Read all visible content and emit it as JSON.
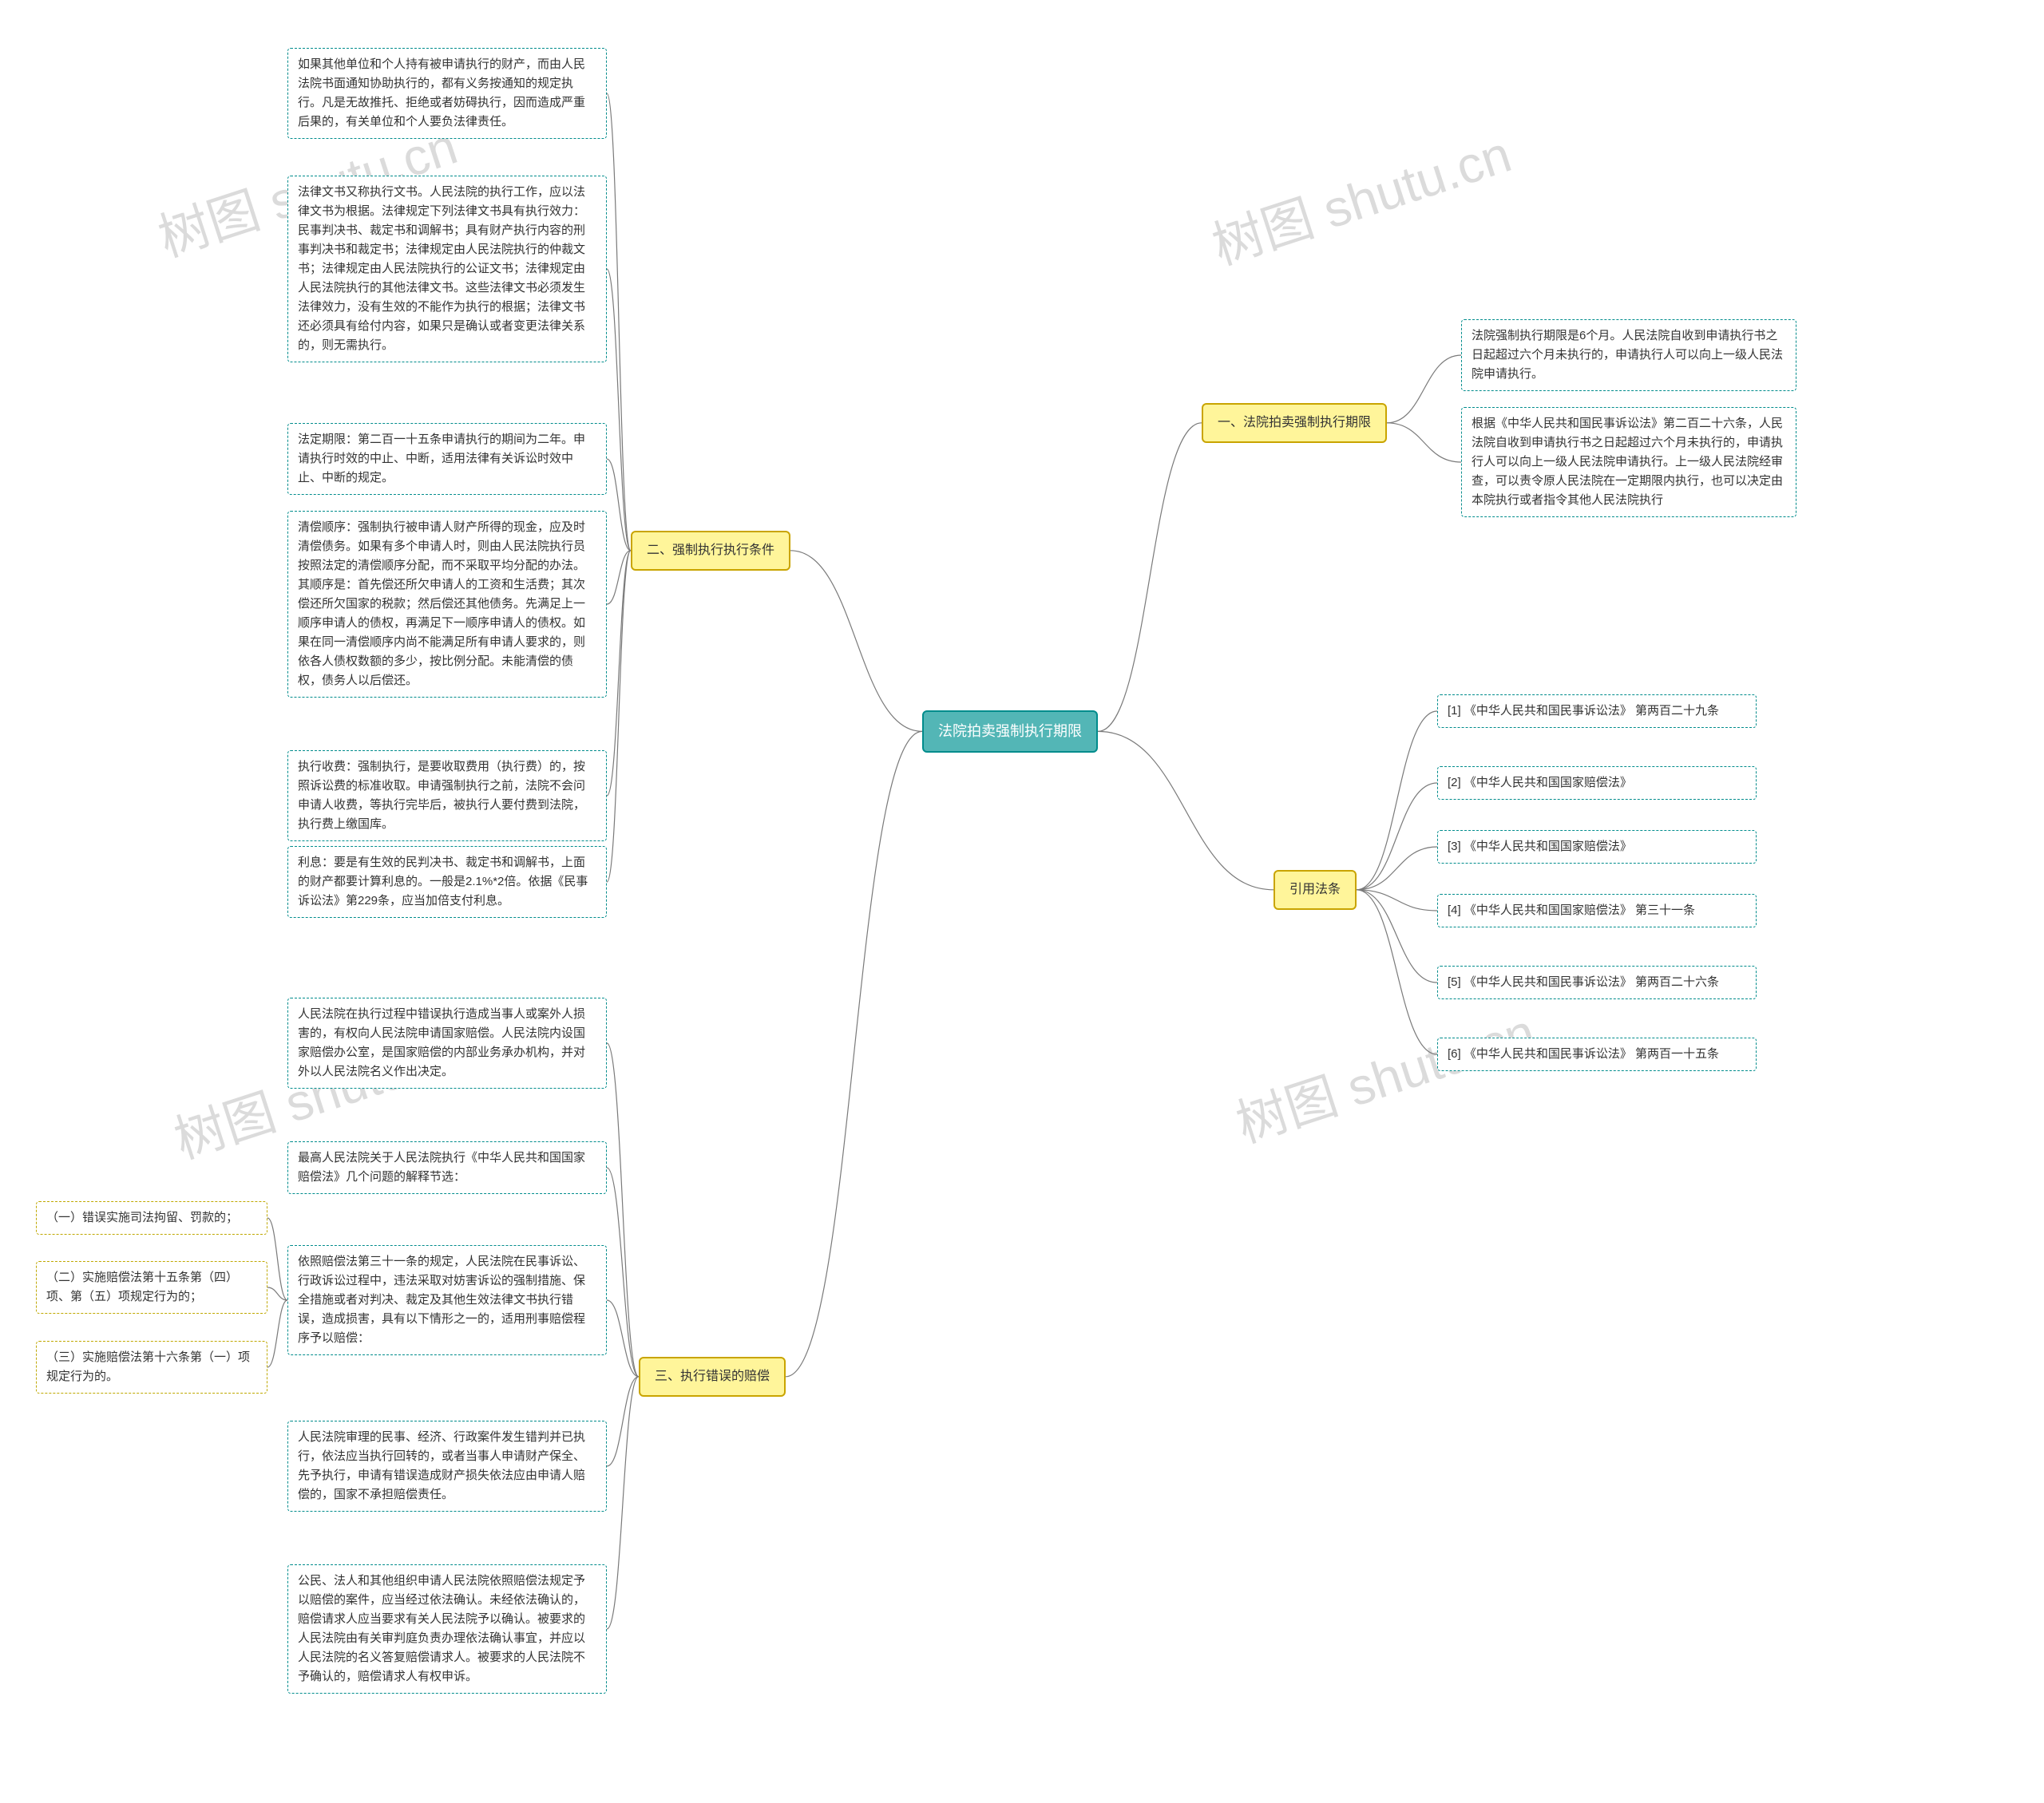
{
  "colors": {
    "root_border": "#008c8c",
    "root_fill": "#53b6b6",
    "root_text": "#ffffff",
    "l1_border": "#c9a400",
    "l1_fill": "#fff59a",
    "leaf_border": "#008c8c",
    "leaf_fill": "#ffffff",
    "sub_border": "#bfa800",
    "sub_fill": "#ffffff",
    "connector": "#7a7a7a",
    "bg": "#ffffff",
    "text": "#333333"
  },
  "fonts": {
    "root_size": 18,
    "l1_size": 16,
    "leaf_size": 15,
    "line_height": 1.6
  },
  "watermark": "树图 shutu.cn",
  "root": {
    "label": "法院拍卖强制执行期限"
  },
  "right": {
    "b1": {
      "label": "一、法院拍卖强制执行期限",
      "leaves": [
        "法院强制执行期限是6个月。人民法院自收到申请执行书之日起超过六个月未执行的，申请执行人可以向上一级人民法院申请执行。",
        "根据《中华人民共和国民事诉讼法》第二百二十六条，人民法院自收到申请执行书之日起超过六个月未执行的，申请执行人可以向上一级人民法院申请执行。上一级人民法院经审查，可以责令原人民法院在一定期限内执行，也可以决定由本院执行或者指令其他人民法院执行"
      ]
    },
    "b2": {
      "label": "引用法条",
      "leaves": [
        "[1] 《中华人民共和国民事诉讼法》 第两百二十九条",
        "[2] 《中华人民共和国国家赔偿法》",
        "[3] 《中华人民共和国国家赔偿法》",
        "[4] 《中华人民共和国国家赔偿法》 第三十一条",
        "[5] 《中华人民共和国民事诉讼法》 第两百二十六条",
        "[6] 《中华人民共和国民事诉讼法》 第两百一十五条"
      ]
    }
  },
  "left": {
    "b1": {
      "label": "二、强制执行执行条件",
      "leaves": [
        "如果其他单位和个人持有被申请执行的财产，而由人民法院书面通知协助执行的，都有义务按通知的规定执行。凡是无故推托、拒绝或者妨碍执行，因而造成严重后果的，有关单位和个人要负法律责任。",
        "法律文书又称执行文书。人民法院的执行工作，应以法律文书为根据。法律规定下列法律文书具有执行效力：民事判决书、裁定书和调解书；具有财产执行内容的刑事判决书和裁定书；法律规定由人民法院执行的仲裁文书；法律规定由人民法院执行的公证文书；法律规定由人民法院执行的其他法律文书。这些法律文书必须发生法律效力，没有生效的不能作为执行的根据；法律文书还必须具有给付内容，如果只是确认或者变更法律关系的，则无需执行。",
        "法定期限：第二百一十五条申请执行的期间为二年。申请执行时效的中止、中断，适用法律有关诉讼时效中止、中断的规定。",
        "清偿顺序：强制执行被申请人财产所得的现金，应及时清偿债务。如果有多个申请人时，则由人民法院执行员按照法定的清偿顺序分配，而不采取平均分配的办法。其顺序是：首先偿还所欠申请人的工资和生活费；其次偿还所欠国家的税款；然后偿还其他债务。先满足上一顺序申请人的债权，再满足下一顺序申请人的债权。如果在同一清偿顺序内尚不能满足所有申请人要求的，则依各人债权数额的多少，按比例分配。未能清偿的债权，债务人以后偿还。",
        "执行收费：强制执行，是要收取费用（执行费）的，按照诉讼费的标准收取。申请强制执行之前，法院不会问申请人收费，等执行完毕后，被执行人要付费到法院，执行费上缴国库。",
        "利息：要是有生效的民判决书、裁定书和调解书，上面的财产都要计算利息的。一般是2.1%*2倍。依据《民事诉讼法》第229条，应当加倍支付利息。"
      ]
    },
    "b2": {
      "label": "三、执行错误的赔偿",
      "leaves": [
        "人民法院在执行过程中错误执行造成当事人或案外人损害的，有权向人民法院申请国家赔偿。人民法院内设国家赔偿办公室，是国家赔偿的内部业务承办机构，并对外以人民法院名义作出决定。",
        "最高人民法院关于人民法院执行《中华人民共和国国家赔偿法》几个问题的解释节选：",
        "依照赔偿法第三十一条的规定，人民法院在民事诉讼、行政诉讼过程中，违法采取对妨害诉讼的强制措施、保全措施或者对判决、裁定及其他生效法律文书执行错误，造成损害，具有以下情形之一的，适用刑事赔偿程序予以赔偿：",
        "人民法院审理的民事、经济、行政案件发生错判并已执行，依法应当执行回转的，或者当事人申请财产保全、先予执行，申请有错误造成财产损失依法应由申请人赔偿的，国家不承担赔偿责任。",
        "公民、法人和其他组织申请人民法院依照赔偿法规定予以赔偿的案件，应当经过依法确认。未经依法确认的，赔偿请求人应当要求有关人民法院予以确认。被要求的人民法院由有关审判庭负责办理依法确认事宜，并应以人民法院的名义答复赔偿请求人。被要求的人民法院不予确认的，赔偿请求人有权申诉。"
      ],
      "sub": [
        "（一）错误实施司法拘留、罚款的；",
        "（二）实施赔偿法第十五条第（四）项、第（五）项规定行为的；",
        "（三）实施赔偿法第十六条第（一）项规定行为的。"
      ]
    }
  }
}
